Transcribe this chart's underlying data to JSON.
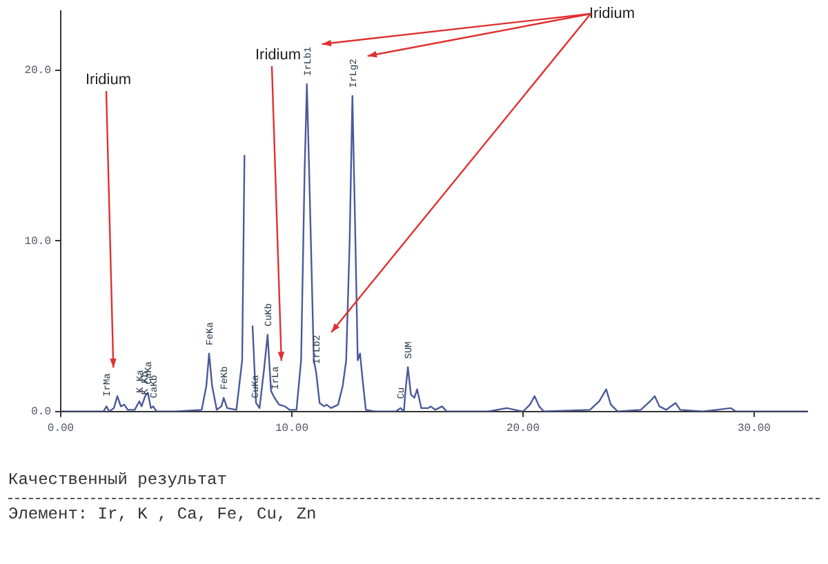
{
  "chart_data": {
    "type": "line",
    "x": [
      0,
      1,
      1.5,
      1.85,
      1.98,
      2.1,
      2.3,
      2.45,
      2.6,
      2.75,
      2.9,
      3.2,
      3.4,
      3.5,
      3.65,
      3.77,
      3.9,
      4.0,
      4.15,
      5.0,
      6.1,
      6.3,
      6.42,
      6.55,
      6.75,
      6.95,
      7.05,
      7.2,
      7.6,
      7.85,
      7.95,
      8.02,
      8.2,
      8.3,
      8.45,
      8.6,
      8.8,
      8.95,
      9.1,
      9.25,
      9.45,
      9.7,
      9.9,
      10.2,
      10.4,
      10.55,
      10.65,
      10.75,
      10.95,
      11.05,
      11.2,
      11.4,
      11.5,
      11.7,
      12.0,
      12.2,
      12.35,
      12.5,
      12.62,
      12.75,
      12.85,
      12.95,
      13.05,
      13.2,
      13.6,
      14.5,
      14.7,
      14.85,
      14.9,
      15.02,
      15.15,
      15.3,
      15.42,
      15.6,
      15.9,
      16.0,
      16.2,
      16.5,
      16.7,
      18.5,
      19.3,
      20.0,
      20.3,
      20.5,
      20.7,
      20.9,
      22.9,
      23.3,
      23.6,
      23.8,
      24.1,
      25.1,
      25.5,
      25.7,
      25.9,
      26.2,
      26.6,
      26.8,
      27.8,
      29.0,
      29.2,
      32.3
    ],
    "series": [
      {
        "color": "#4a5a9a",
        "values": [
          0,
          0,
          0,
          0,
          0.3,
          0,
          0.2,
          0.9,
          0.3,
          0.4,
          0.1,
          0.1,
          0.6,
          0.3,
          0.9,
          1.1,
          0.2,
          0.3,
          0,
          0,
          0.1,
          1.5,
          3.4,
          1.5,
          0.1,
          0.3,
          0.8,
          0.2,
          0.1,
          3,
          15,
          null,
          null,
          5,
          0.5,
          0.2,
          2.5,
          4.5,
          1.2,
          0.8,
          0.4,
          0.3,
          0.1,
          0.1,
          3,
          14,
          19.2,
          14,
          3,
          2.3,
          0.5,
          0.3,
          0.4,
          0.2,
          0.4,
          1.5,
          3,
          10,
          18.5,
          10,
          3,
          3.4,
          2,
          0.1,
          0,
          0,
          0.2,
          0,
          1,
          2.6,
          1,
          0.8,
          1.3,
          0.2,
          0.2,
          0.3,
          0.1,
          0.3,
          0,
          0,
          0.2,
          0,
          0.4,
          0.9,
          0.3,
          0,
          0.1,
          0.6,
          1.3,
          0.4,
          0,
          0.1,
          0.6,
          0.9,
          0.3,
          0.1,
          0.5,
          0.1,
          0,
          0.2,
          0,
          0
        ]
      }
    ],
    "xlim": [
      0,
      32.3
    ],
    "ylim": [
      0,
      23.5
    ],
    "xticks": [
      {
        "value": 0,
        "label": "0.00"
      },
      {
        "value": 10,
        "label": "10.00"
      },
      {
        "value": 20,
        "label": "20.00"
      },
      {
        "value": 30,
        "label": "30.00"
      }
    ],
    "yticks": [
      {
        "value": 0,
        "label": "0.0"
      },
      {
        "value": 10,
        "label": "10.0"
      },
      {
        "value": 20,
        "label": "20.0"
      }
    ],
    "grid": false,
    "legend": false,
    "marker": "none",
    "line_style": "solid",
    "annotations": [
      {
        "text": "IrMa",
        "x": 1.98,
        "y": 0.4
      },
      {
        "text": "K Ka",
        "x": 3.4,
        "y": 0.6
      },
      {
        "text": "K Kb",
        "x": 3.6,
        "y": 0.5
      },
      {
        "text": "CaKa",
        "x": 3.77,
        "y": 1.1
      },
      {
        "text": "CaKb",
        "x": 4.0,
        "y": 0.3
      },
      {
        "text": "FeKa",
        "x": 6.42,
        "y": 3.4
      },
      {
        "text": "FeKb",
        "x": 7.05,
        "y": 0.8
      },
      {
        "text": "CuKa",
        "x": 8.4,
        "y": 0.3
      },
      {
        "text": "CuKb",
        "x": 8.95,
        "y": 4.5
      },
      {
        "text": "IrLa",
        "x": 9.25,
        "y": 0.8
      },
      {
        "text": "IrLb1",
        "x": 10.65,
        "y": 19.2
      },
      {
        "text": "IrLb2",
        "x": 11.05,
        "y": 2.3
      },
      {
        "text": "IrLg2",
        "x": 12.62,
        "y": 18.5
      },
      {
        "text": "Cu",
        "x": 14.7,
        "y": 0.25
      },
      {
        "text": "SUM",
        "x": 15.02,
        "y": 2.6
      },
      "Iridium",
      "Iridium",
      "Iridium",
      "Качественный результат",
      "Элемент: Ir, K , Ca, Fe, Cu, Zn"
    ]
  }
}
